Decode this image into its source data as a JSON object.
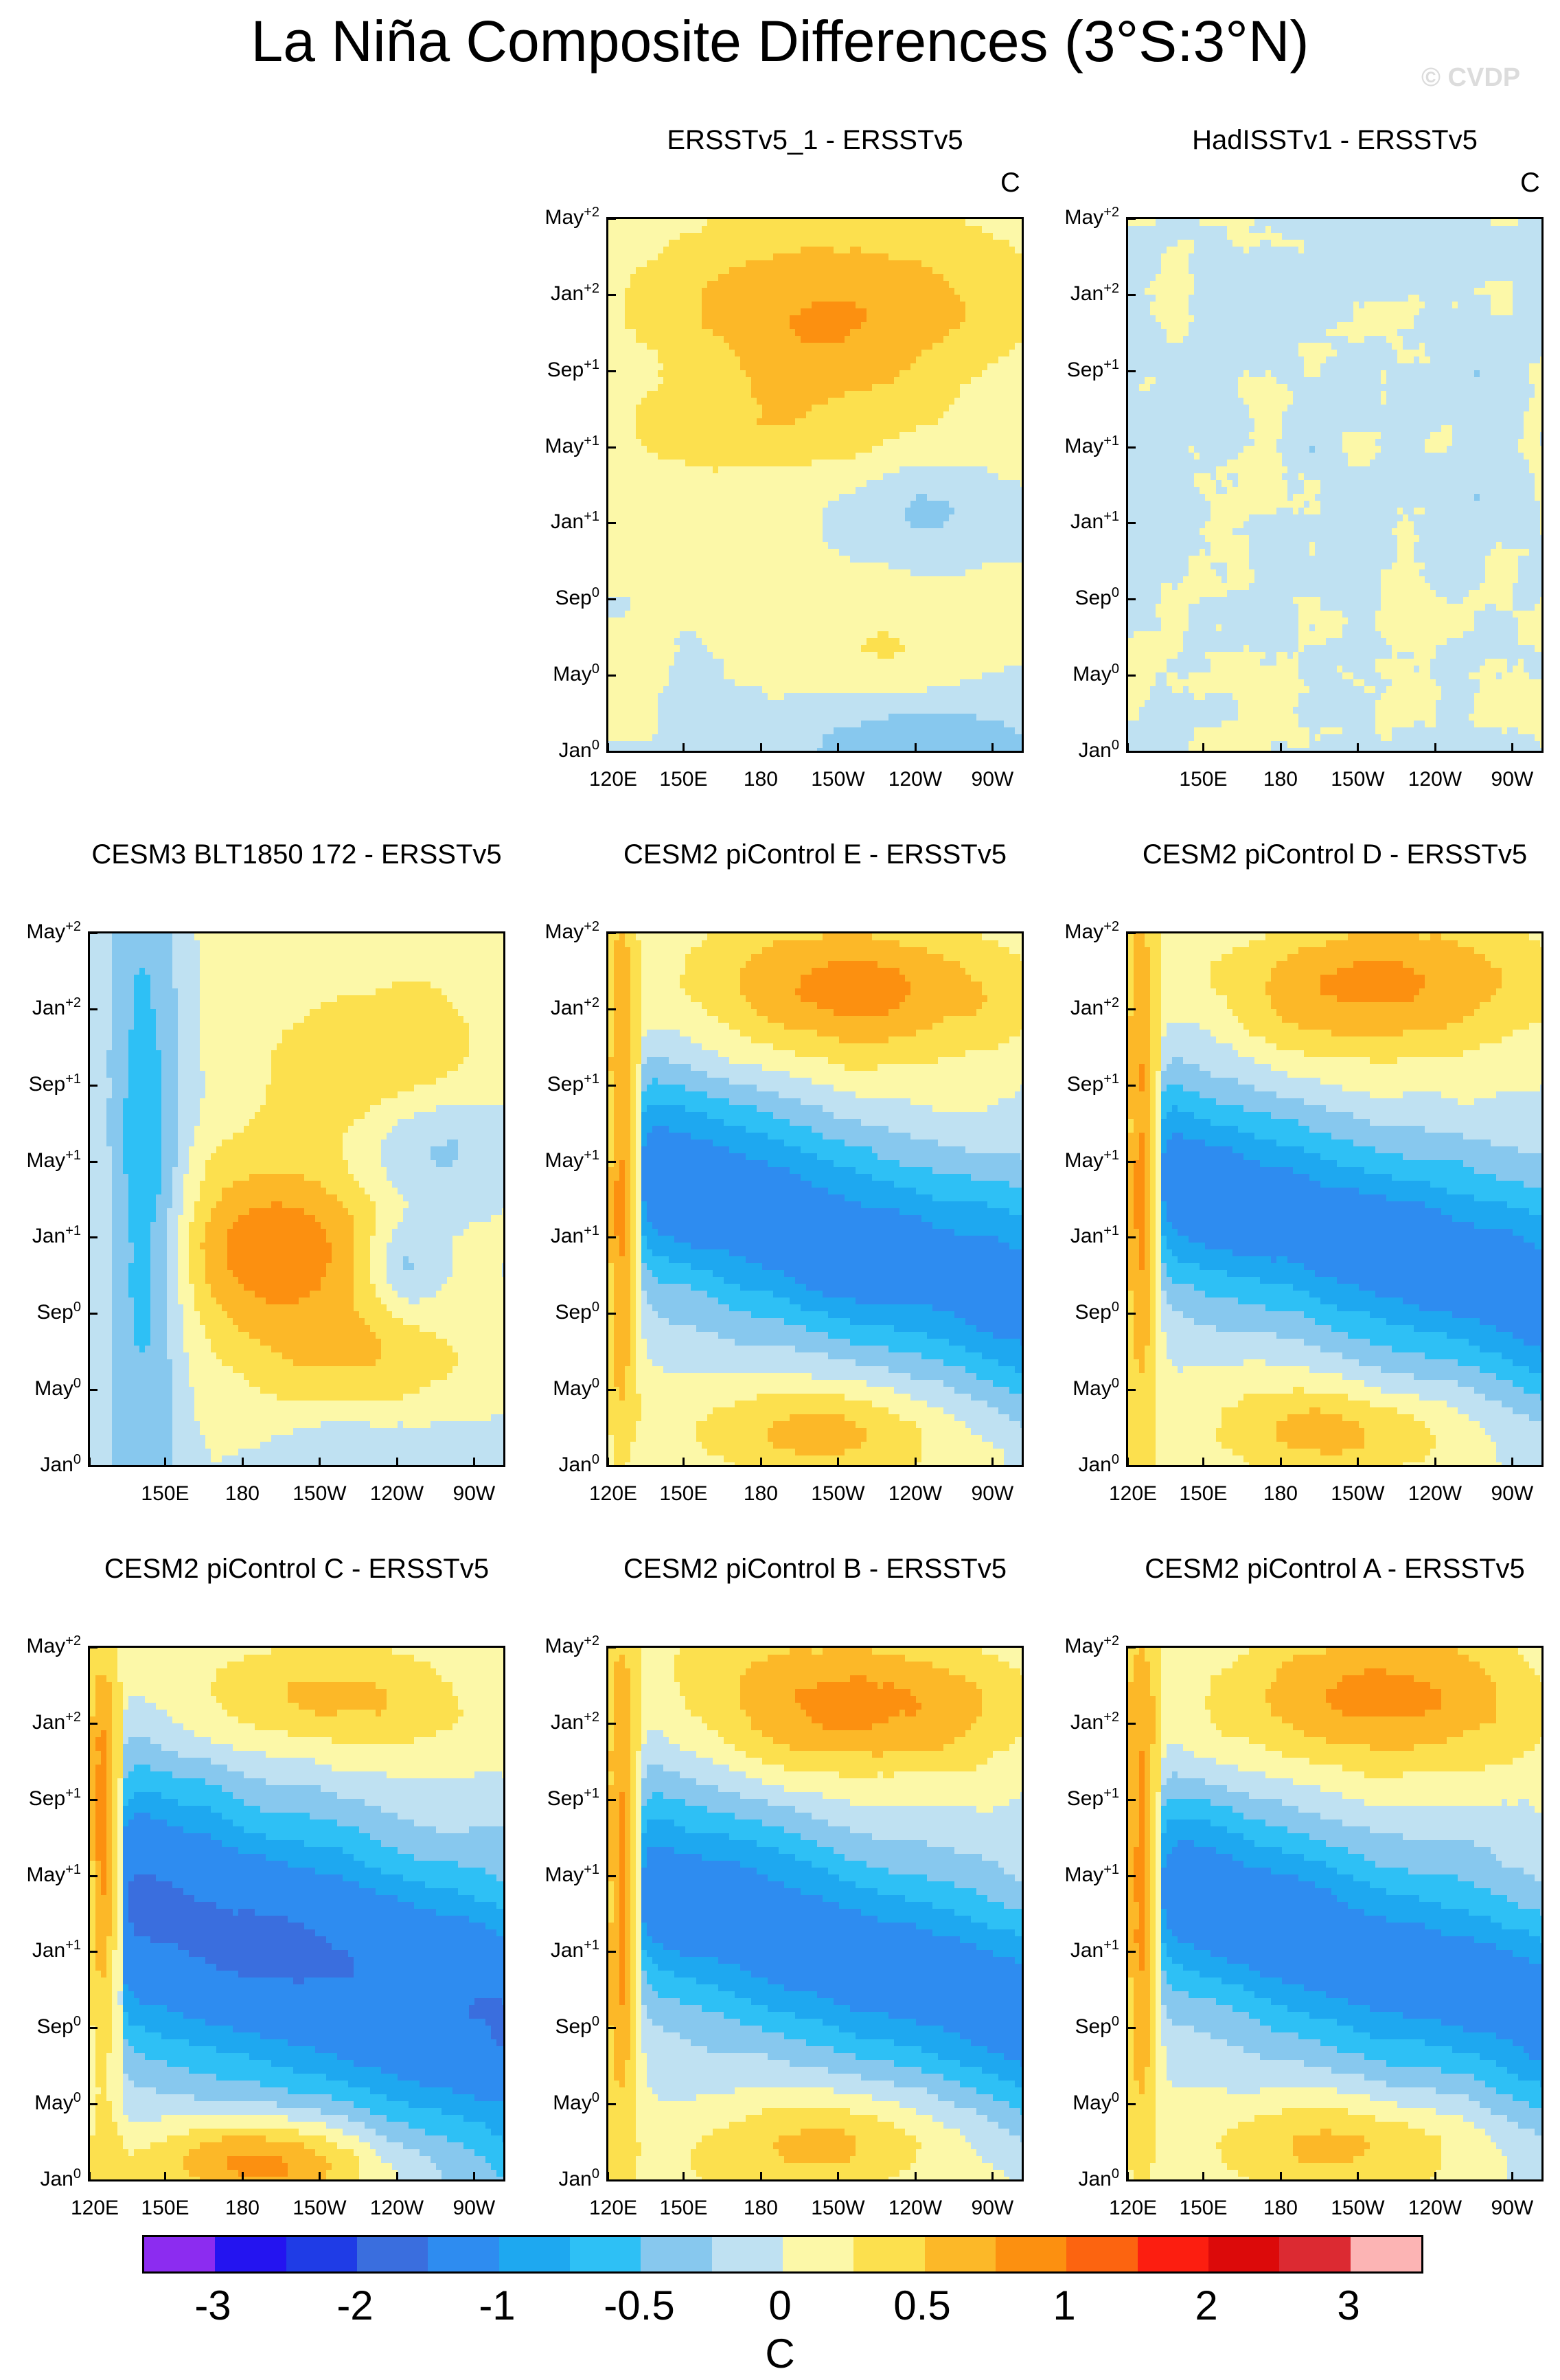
{
  "title": "La Niña Composite Differences (3°S:3°N)",
  "watermark": "© CVDP",
  "unit": "C",
  "colors": {
    "levels": [
      "#8c2cf0",
      "#2414f0",
      "#1f3ce6",
      "#3a6ede",
      "#2e8cf0",
      "#1ea8f0",
      "#2ec0f5",
      "#87c8ee",
      "#bfe1f2",
      "#fcf8a8",
      "#fce04e",
      "#fcb828",
      "#fc9010",
      "#fc6410",
      "#fc1e10",
      "#dc0a0a",
      "#dc2a32",
      "#fcb4b4"
    ],
    "panel_background": "#ffffff"
  },
  "colorbar": {
    "labels": [
      "-3",
      "-2",
      "-1",
      "-0.5",
      "0",
      "0.5",
      "1",
      "2",
      "3"
    ]
  },
  "chart_data": [
    {
      "type": "heatmap",
      "title": "ERSSTv5_1 - ERSSTv5",
      "unit_label": "C",
      "y_ticks": [
        "Jan",
        "May",
        "Sep",
        "Jan",
        "May",
        "Sep",
        "Jan",
        "May"
      ],
      "y_tick_sup": [
        "0",
        "0",
        "0",
        "+1",
        "+1",
        "+1",
        "+2",
        "+2"
      ],
      "x_ticks": [
        "120E",
        "150E",
        "180",
        "150W",
        "120W",
        "90W"
      ],
      "pattern": "obs",
      "row": 0,
      "col": 1
    },
    {
      "type": "heatmap",
      "title": "HadISSTv1 - ERSSTv5",
      "unit_label": "C",
      "y_ticks": [
        "Jan",
        "May",
        "Sep",
        "Jan",
        "May",
        "Sep",
        "Jan",
        "May"
      ],
      "y_tick_sup": [
        "0",
        "0",
        "0",
        "+1",
        "+1",
        "+1",
        "+2",
        "+2"
      ],
      "x_ticks": [
        "",
        "150E",
        "180",
        "150W",
        "120W",
        "90W"
      ],
      "pattern": "noise",
      "row": 0,
      "col": 2
    },
    {
      "type": "heatmap",
      "title": "CESM3 BLT1850 172 - ERSSTv5",
      "unit_label": "",
      "y_ticks": [
        "Jan",
        "May",
        "Sep",
        "Jan",
        "May",
        "Sep",
        "Jan",
        "May"
      ],
      "y_tick_sup": [
        "0",
        "0",
        "0",
        "+1",
        "+1",
        "+1",
        "+2",
        "+2"
      ],
      "x_ticks": [
        "",
        "150E",
        "180",
        "150W",
        "120W",
        "90W"
      ],
      "pattern": "cesm3",
      "row": 1,
      "col": 0
    },
    {
      "type": "heatmap",
      "title": "CESM2 piControl E - ERSSTv5",
      "unit_label": "",
      "y_ticks": [
        "Jan",
        "May",
        "Sep",
        "Jan",
        "May",
        "Sep",
        "Jan",
        "May"
      ],
      "y_tick_sup": [
        "0",
        "0",
        "0",
        "+1",
        "+1",
        "+1",
        "+2",
        "+2"
      ],
      "x_ticks": [
        "120E",
        "150E",
        "180",
        "150W",
        "120W",
        "90W"
      ],
      "pattern": "cesm2",
      "row": 1,
      "col": 1
    },
    {
      "type": "heatmap",
      "title": "CESM2 piControl D - ERSSTv5",
      "unit_label": "",
      "y_ticks": [
        "Jan",
        "May",
        "Sep",
        "Jan",
        "May",
        "Sep",
        "Jan",
        "May"
      ],
      "y_tick_sup": [
        "0",
        "0",
        "0",
        "+1",
        "+1",
        "+1",
        "+2",
        "+2"
      ],
      "x_ticks": [
        "120E",
        "150E",
        "180",
        "150W",
        "120W",
        "90W"
      ],
      "pattern": "cesm2",
      "row": 1,
      "col": 2
    },
    {
      "type": "heatmap",
      "title": "CESM2 piControl C - ERSSTv5",
      "unit_label": "",
      "y_ticks": [
        "Jan",
        "May",
        "Sep",
        "Jan",
        "May",
        "Sep",
        "Jan",
        "May"
      ],
      "y_tick_sup": [
        "0",
        "0",
        "0",
        "+1",
        "+1",
        "+1",
        "+2",
        "+2"
      ],
      "x_ticks": [
        "120E",
        "150E",
        "180",
        "150W",
        "120W",
        "90W"
      ],
      "pattern": "cesm2b",
      "row": 2,
      "col": 0
    },
    {
      "type": "heatmap",
      "title": "CESM2 piControl B - ERSSTv5",
      "unit_label": "",
      "y_ticks": [
        "Jan",
        "May",
        "Sep",
        "Jan",
        "May",
        "Sep",
        "Jan",
        "May"
      ],
      "y_tick_sup": [
        "0",
        "0",
        "0",
        "+1",
        "+1",
        "+1",
        "+2",
        "+2"
      ],
      "x_ticks": [
        "120E",
        "150E",
        "180",
        "150W",
        "120W",
        "90W"
      ],
      "pattern": "cesm2",
      "row": 2,
      "col": 1
    },
    {
      "type": "heatmap",
      "title": "CESM2 piControl A - ERSSTv5",
      "unit_label": "",
      "y_ticks": [
        "Jan",
        "May",
        "Sep",
        "Jan",
        "May",
        "Sep",
        "Jan",
        "May"
      ],
      "y_tick_sup": [
        "0",
        "0",
        "0",
        "+1",
        "+1",
        "+1",
        "+2",
        "+2"
      ],
      "x_ticks": [
        "120E",
        "150E",
        "180",
        "150W",
        "120W",
        "90W"
      ],
      "pattern": "cesm2",
      "row": 2,
      "col": 2
    }
  ]
}
